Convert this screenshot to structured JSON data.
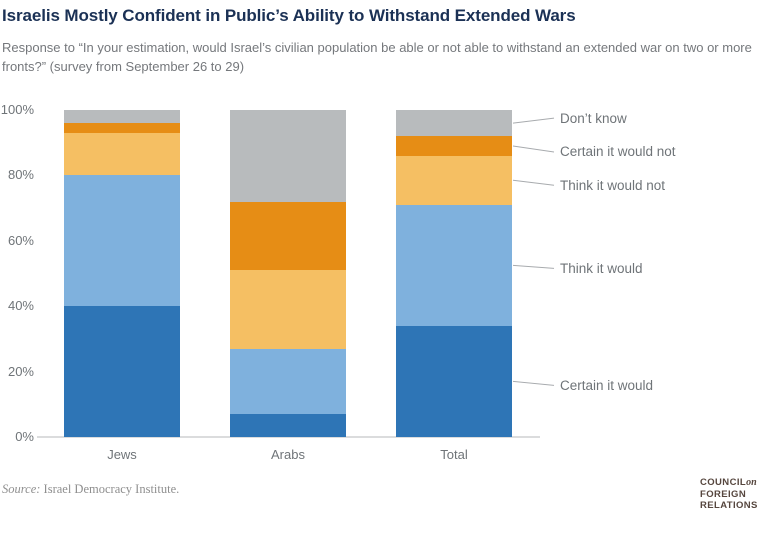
{
  "header": {
    "title": "Israelis Mostly Confident in Public’s Ability to Withstand Extended Wars",
    "subtitle": "Response to “In your estimation, would Israel’s civilian population be able or not able to withstand an extended war on two or more fronts?” (survey from September 26 to 29)"
  },
  "chart_data": {
    "type": "bar",
    "stacked": true,
    "title": "Israelis Mostly Confident in Public’s Ability to Withstand Extended Wars",
    "categories": [
      "Jews",
      "Arabs",
      "Total"
    ],
    "series": [
      {
        "name": "Certain it would",
        "color": "#2e75b6",
        "values": [
          40,
          7,
          34
        ]
      },
      {
        "name": "Think it would",
        "color": "#7fb1dd",
        "values": [
          40,
          20,
          37
        ]
      },
      {
        "name": "Think it would not",
        "color": "#f5bf63",
        "values": [
          13,
          24,
          15
        ]
      },
      {
        "name": "Certain it would not",
        "color": "#e68d15",
        "values": [
          3,
          21,
          6
        ]
      },
      {
        "name": "Don’t know",
        "color": "#b8bbbd",
        "values": [
          4,
          28,
          8
        ]
      }
    ],
    "xlabel": "",
    "ylabel": "",
    "ylim": [
      0,
      100
    ],
    "y_ticks": [
      "0%",
      "20%",
      "40%",
      "60%",
      "80%",
      "100%"
    ],
    "grid": false,
    "legend_position": "right-callouts",
    "legend_labels_top_to_bottom": [
      "Don’t know",
      "Certain it would not",
      "Think it would not",
      "Think it would",
      "Certain it would"
    ]
  },
  "source": {
    "prefix": "Source:",
    "text": "Israel Democracy Institute."
  },
  "logo": {
    "line1": "COUNCIL",
    "line1_suffix": "on",
    "line2": "FOREIGN",
    "line3": "RELATIONS"
  },
  "colors": {
    "title": "#1b3155",
    "subtitle": "#75787c",
    "axis_text": "#6f7478",
    "axis_line": "#dbdcdd",
    "leader_line": "#a8abae",
    "source_text": "#8f8f8f",
    "logo": "#56463e"
  }
}
